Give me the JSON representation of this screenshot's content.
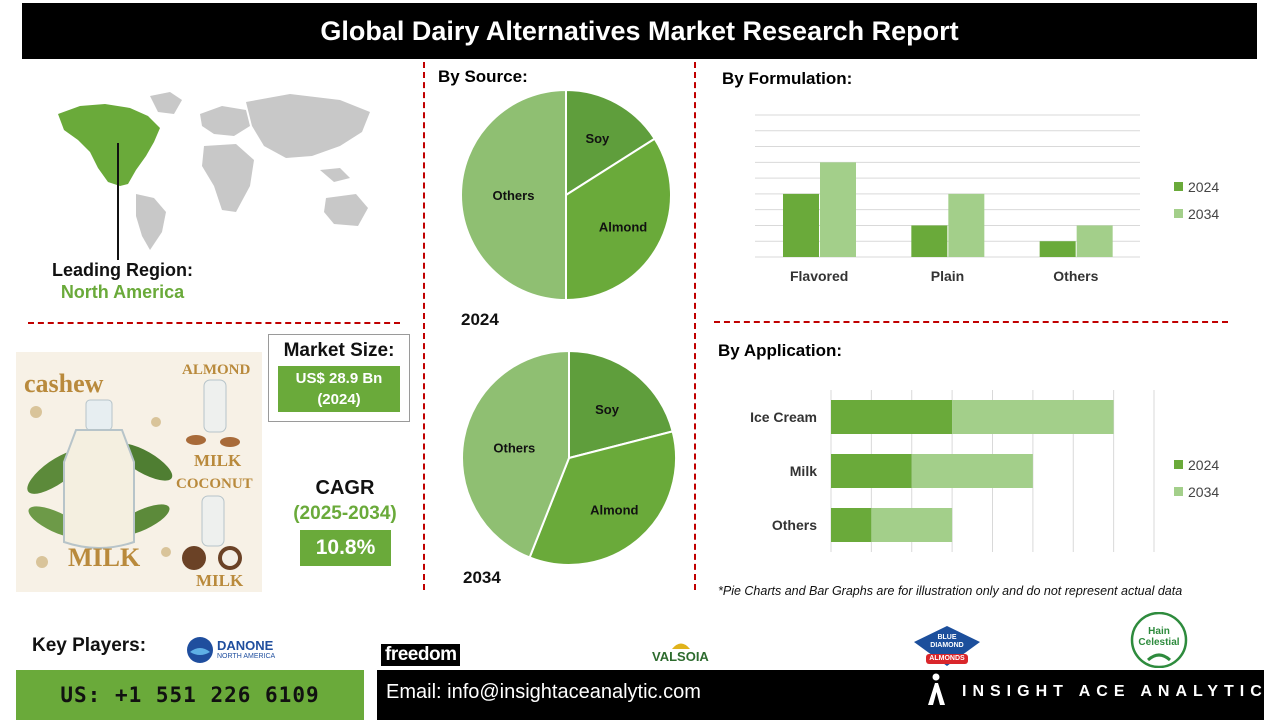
{
  "header": {
    "title": "Global Dairy Alternatives Market Research Report"
  },
  "region": {
    "label": "Leading Region:",
    "value": "North America"
  },
  "market_size": {
    "title": "Market Size:",
    "value_line1": "US$ 28.9 Bn",
    "value_line2": "(2024)"
  },
  "cagr": {
    "title": "CAGR",
    "period": "(2025-2034)",
    "value": "10.8%"
  },
  "illustration": {
    "words": [
      "cashew",
      "ALMOND",
      "MILK",
      "COCONUT",
      "MILK",
      "MILK"
    ]
  },
  "sections": {
    "source": "By Source:",
    "formulation": "By Formulation:",
    "application": "By Application:"
  },
  "note": "*Pie Charts and Bar Graphs are for illustration only and do not represent actual data",
  "key_players": {
    "label": "Key Players:",
    "logos": [
      {
        "name": "DANONE",
        "sub": "NORTH AMERICA"
      },
      {
        "name": "freedom"
      },
      {
        "name": "VALSOIA"
      },
      {
        "name": "BLUE DIAMOND",
        "sub": "ALMONDS"
      },
      {
        "name": "Hain Celestial"
      }
    ]
  },
  "footer": {
    "phone": "US: +1 551 226 6109",
    "email": "Email: info@insightaceanalytic.com",
    "brand": "INSIGHT ACE ANALYTIC"
  },
  "colors": {
    "dark_green": "#5f9e3c",
    "mid_green": "#6aaa3a",
    "light_green": "#a3cf8a",
    "pie_others": "#8fbf72",
    "divider_red": "#c00000"
  },
  "chart_data": [
    {
      "type": "pie",
      "year": "2024",
      "slices": [
        {
          "label": "Soy",
          "value": 16
        },
        {
          "label": "Almond",
          "value": 34
        },
        {
          "label": "Others",
          "value": 50
        }
      ]
    },
    {
      "type": "pie",
      "year": "2034",
      "slices": [
        {
          "label": "Soy",
          "value": 21
        },
        {
          "label": "Almond",
          "value": 35
        },
        {
          "label": "Others",
          "value": 44
        }
      ]
    },
    {
      "type": "bar",
      "orientation": "vertical",
      "categories": [
        "Flavored",
        "Plain",
        "Others"
      ],
      "series": [
        {
          "name": "2024",
          "values": [
            4,
            2,
            1
          ]
        },
        {
          "name": "2034",
          "values": [
            6,
            4,
            2
          ]
        }
      ],
      "ylim": [
        0,
        9
      ],
      "grid": true,
      "legend": "right"
    },
    {
      "type": "bar",
      "orientation": "horizontal",
      "stacked": true,
      "categories": [
        "Ice Cream",
        "Milk",
        "Others"
      ],
      "series": [
        {
          "name": "2024",
          "values": [
            3,
            2,
            1
          ]
        },
        {
          "name": "2034",
          "values": [
            4,
            3,
            2
          ]
        }
      ],
      "xlim": [
        0,
        8
      ],
      "grid": true,
      "legend": "right"
    }
  ]
}
